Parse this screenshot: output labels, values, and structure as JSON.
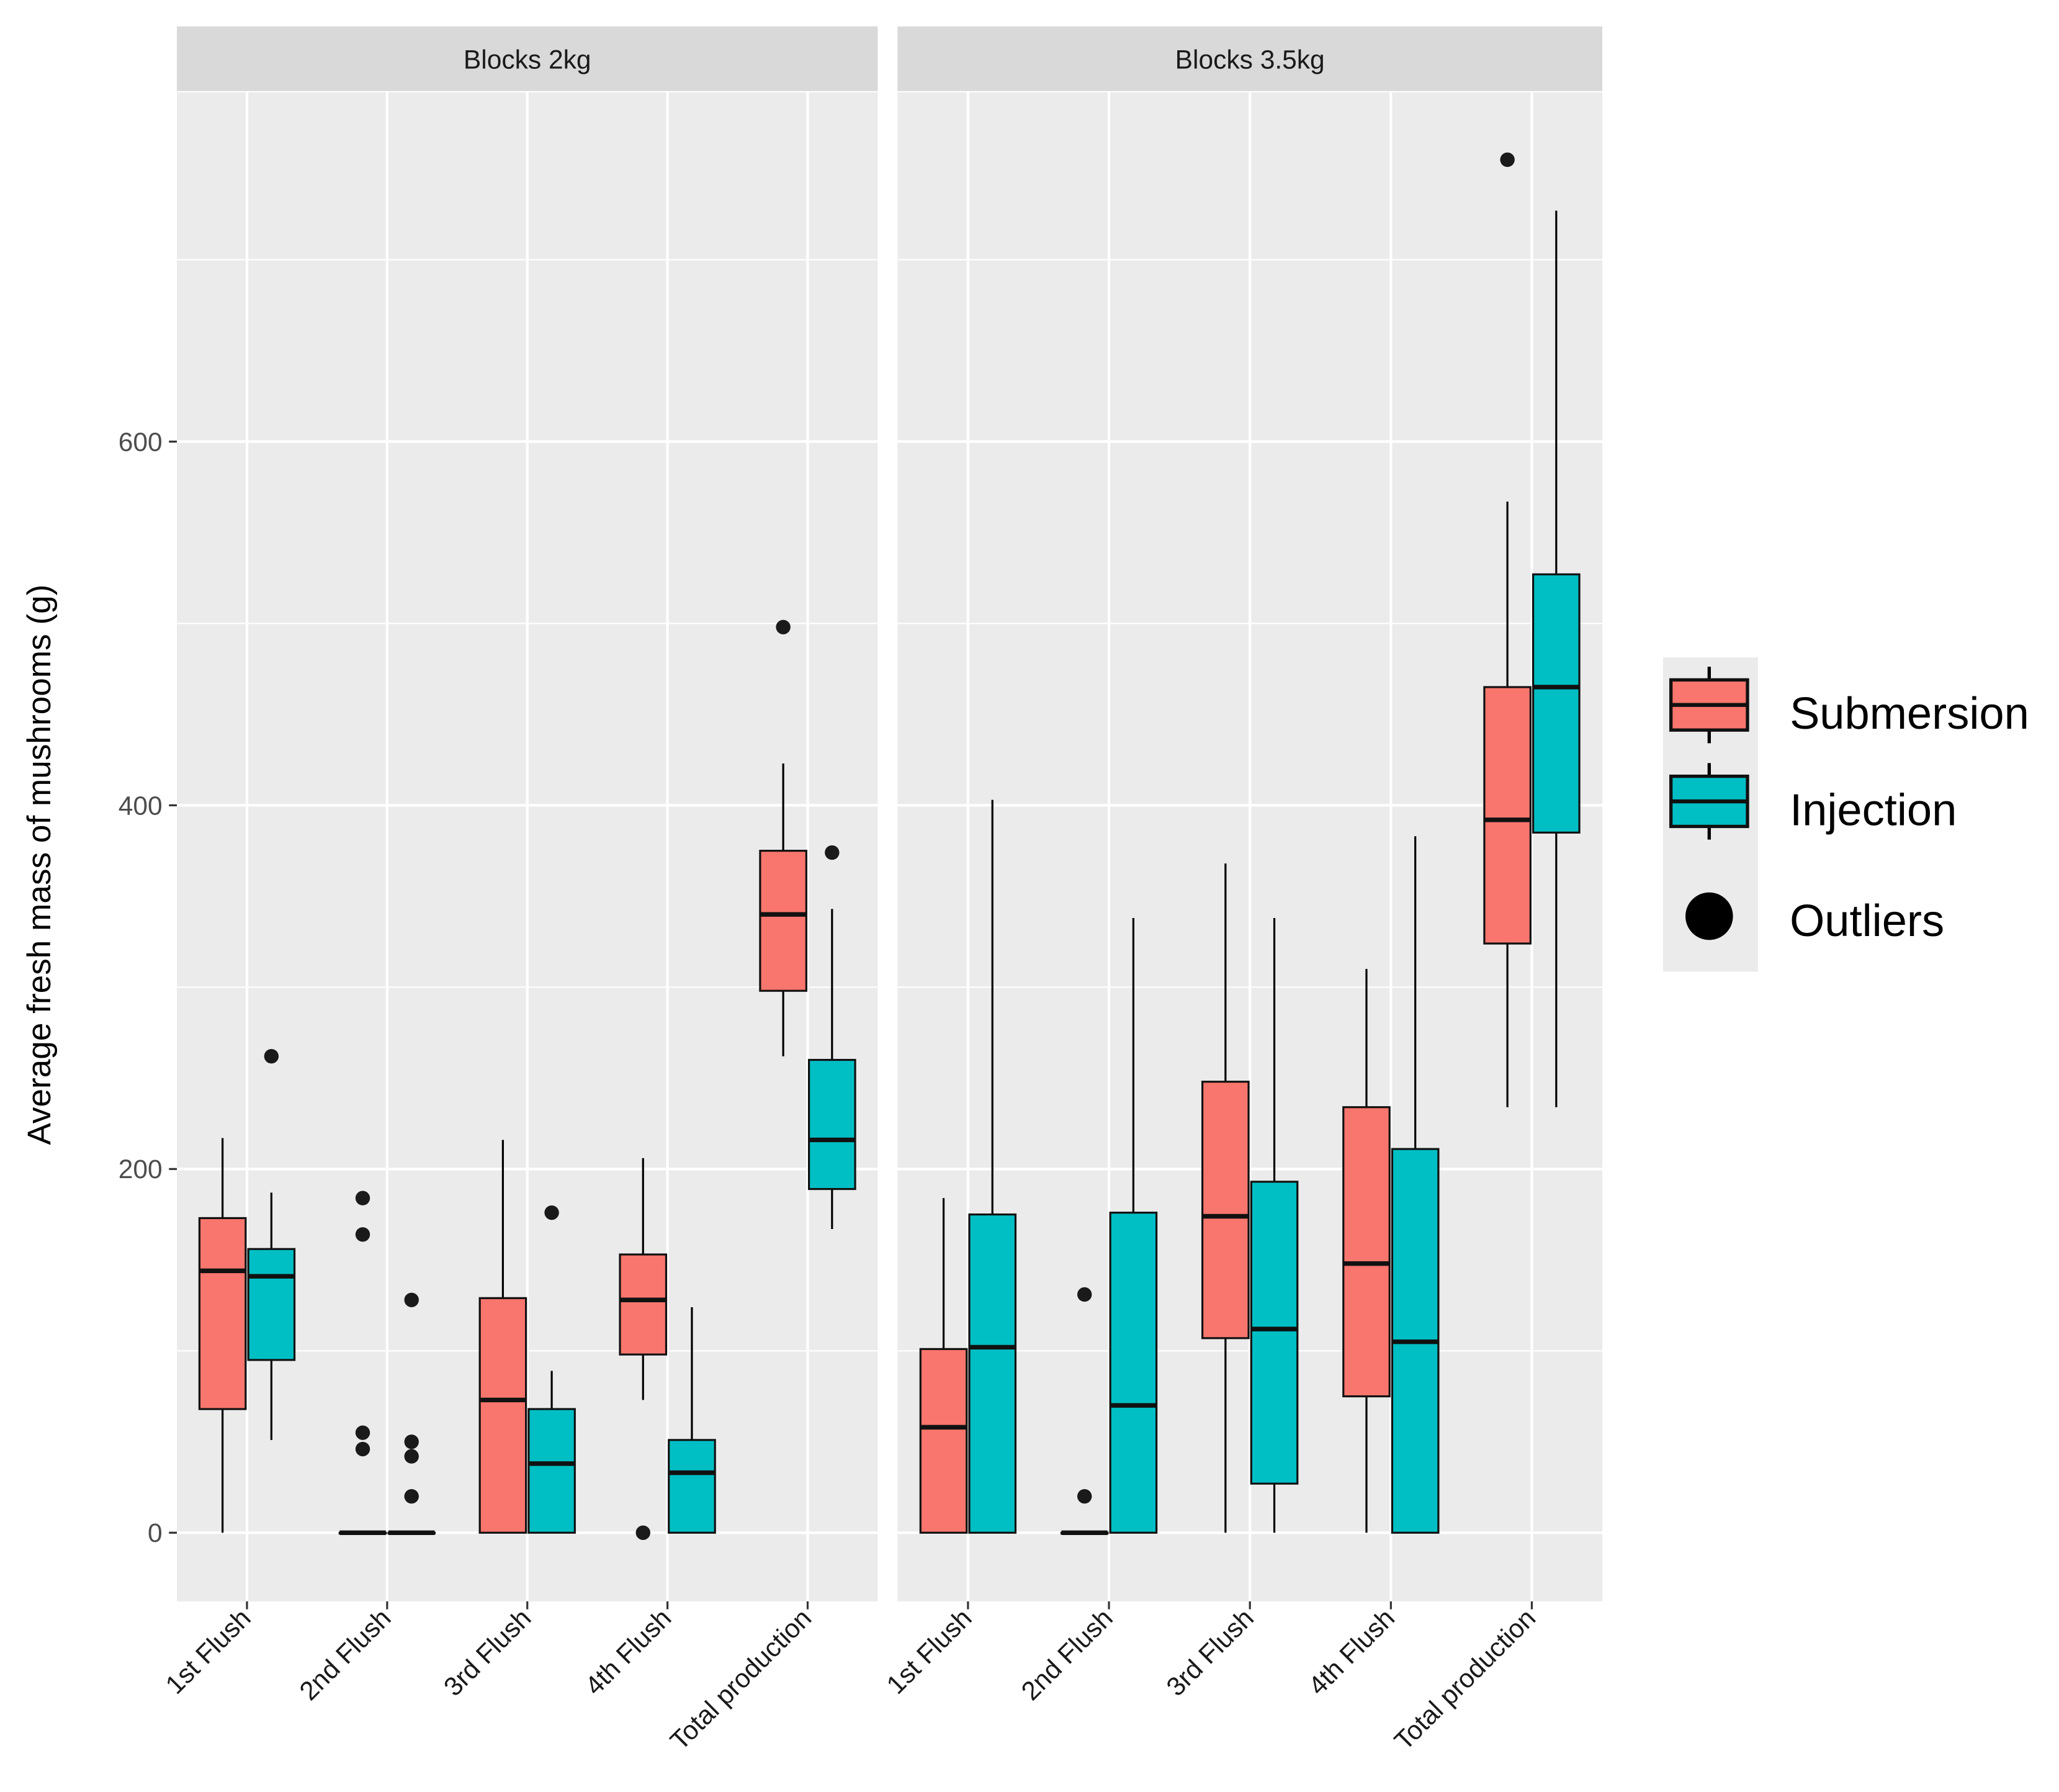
{
  "chart_data": {
    "type": "boxplot",
    "ylabel": "Average fresh mass of mushrooms (g)",
    "xlabel": "",
    "ylim": [
      -38,
      792
    ],
    "yticks": [
      0,
      200,
      400,
      600
    ],
    "grid": true,
    "legend": {
      "position": "right",
      "entries": [
        "Submersion",
        "Injection",
        "Outliers"
      ]
    },
    "colors": {
      "Submersion": "#F8766D",
      "Injection": "#00BFC4"
    },
    "categories": [
      "1st Flush",
      "2nd Flush",
      "3rd Flush",
      "4th Flush",
      "Total production"
    ],
    "panels": [
      {
        "title": "Blocks 2kg",
        "series": [
          {
            "name": "Submersion",
            "boxes": [
              {
                "low": 0,
                "q1": 68,
                "median": 144,
                "q3": 173,
                "high": 217,
                "outliers": []
              },
              {
                "low": 0,
                "q1": 0,
                "median": 0,
                "q3": 0,
                "high": 0,
                "outliers": [
                  184,
                  164,
                  55,
                  46
                ]
              },
              {
                "low": 0,
                "q1": 0,
                "median": 73,
                "q3": 129,
                "high": 216,
                "outliers": []
              },
              {
                "low": 73,
                "q1": 98,
                "median": 128,
                "q3": 153,
                "high": 206,
                "outliers": [
                  0
                ]
              },
              {
                "low": 262,
                "q1": 298,
                "median": 340,
                "q3": 375,
                "high": 423,
                "outliers": [
                  498
                ]
              }
            ]
          },
          {
            "name": "Injection",
            "boxes": [
              {
                "low": 51,
                "q1": 95,
                "median": 141,
                "q3": 156,
                "high": 187,
                "outliers": [
                  262
                ]
              },
              {
                "low": 0,
                "q1": 0,
                "median": 0,
                "q3": 0,
                "high": 0,
                "outliers": [
                  128,
                  50,
                  42,
                  20
                ]
              },
              {
                "low": 0,
                "q1": 0,
                "median": 38,
                "q3": 68,
                "high": 89,
                "outliers": [
                  176
                ]
              },
              {
                "low": 0,
                "q1": 0,
                "median": 33,
                "q3": 51,
                "high": 124,
                "outliers": []
              },
              {
                "low": 167,
                "q1": 189,
                "median": 216,
                "q3": 260,
                "high": 343,
                "outliers": [
                  374
                ]
              }
            ]
          }
        ]
      },
      {
        "title": "Blocks 3.5kg",
        "series": [
          {
            "name": "Submersion",
            "boxes": [
              {
                "low": 0,
                "q1": 0,
                "median": 58,
                "q3": 101,
                "high": 184,
                "outliers": []
              },
              {
                "low": 0,
                "q1": 0,
                "median": 0,
                "q3": 0,
                "high": 0,
                "outliers": [
                  131,
                  20
                ]
              },
              {
                "low": 0,
                "q1": 107,
                "median": 174,
                "q3": 248,
                "high": 368,
                "outliers": []
              },
              {
                "low": 0,
                "q1": 75,
                "median": 148,
                "q3": 234,
                "high": 310,
                "outliers": []
              },
              {
                "low": 234,
                "q1": 324,
                "median": 392,
                "q3": 465,
                "high": 567,
                "outliers": [
                  755
                ]
              }
            ]
          },
          {
            "name": "Injection",
            "boxes": [
              {
                "low": 0,
                "q1": 0,
                "median": 102,
                "q3": 175,
                "high": 403,
                "outliers": []
              },
              {
                "low": 0,
                "q1": 0,
                "median": 70,
                "q3": 176,
                "high": 338,
                "outliers": []
              },
              {
                "low": 0,
                "q1": 27,
                "median": 112,
                "q3": 193,
                "high": 338,
                "outliers": []
              },
              {
                "low": 0,
                "q1": 0,
                "median": 105,
                "q3": 211,
                "high": 383,
                "outliers": []
              },
              {
                "low": 234,
                "q1": 385,
                "median": 465,
                "q3": 527,
                "high": 727,
                "outliers": []
              }
            ]
          }
        ]
      }
    ]
  }
}
